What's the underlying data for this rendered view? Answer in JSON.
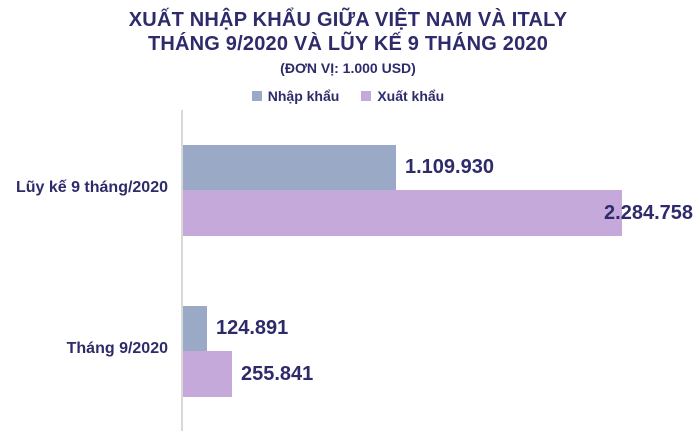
{
  "title": {
    "line1": "XUẤT NHẬP KHẨU GIỮA VIỆT NAM VÀ ITALY",
    "line2": "THÁNG 9/2020 VÀ LŨY KẾ 9 THÁNG 2020",
    "unit": "(ĐƠN VỊ: 1.000 USD)"
  },
  "colors": {
    "text": "#2E2B6B",
    "axis": "#D8D8D8",
    "background": "#FFFFFF",
    "import_bar": "#9AA9C5",
    "export_bar": "#C5A9DA"
  },
  "chart_data": {
    "type": "bar",
    "orientation": "horizontal",
    "title": "XUẤT NHẬP KHẨU GIỮA VIỆT NAM VÀ ITALY THÁNG 9/2020 VÀ LŨY KẾ 9 THÁNG 2020",
    "subtitle": "(ĐƠN VỊ: 1.000 USD)",
    "unit": "1.000 USD",
    "categories": [
      "Lũy kế 9 tháng/2020",
      "Tháng 9/2020"
    ],
    "series": [
      {
        "key": "nhap-khau",
        "name": "Nhập khẩu",
        "color": "#9AA9C5",
        "values": [
          1109930,
          124891
        ],
        "value_labels": [
          "1.109.930",
          "124.891"
        ]
      },
      {
        "key": "xuat-khau",
        "name": "Xuất khẩu",
        "color": "#C5A9DA",
        "values": [
          2284758,
          255841
        ],
        "value_labels": [
          "2.284.758",
          "255.841"
        ]
      }
    ],
    "legend_position": "top",
    "grid": false,
    "value_labels_shown": true,
    "x_axis_ticks": [],
    "xlim": [
      0,
      2284758
    ]
  }
}
